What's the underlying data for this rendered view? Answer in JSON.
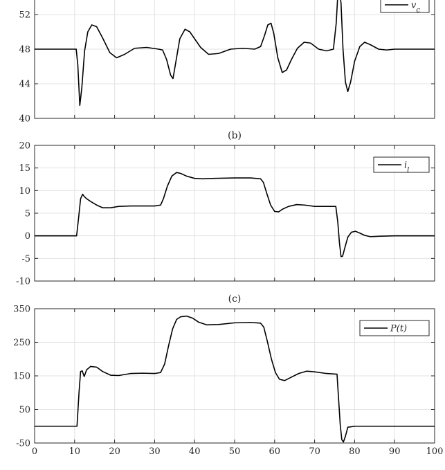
{
  "chart_data": [
    {
      "type": "line",
      "panel_label": "",
      "xlim": [
        0,
        100
      ],
      "ylim": [
        40,
        54
      ],
      "yticks": [
        40,
        44,
        48,
        52
      ],
      "yticklabels": [
        "40",
        "44",
        "48",
        "52"
      ],
      "grid": true,
      "legend_location": "top-right",
      "series": [
        {
          "name": "v_c",
          "color": "#000000",
          "x": [
            0,
            10.4,
            10.8,
            11.3,
            11.8,
            12.5,
            13.3,
            14.3,
            15.5,
            17,
            18.8,
            20.5,
            22.5,
            25,
            28,
            31,
            32,
            33,
            34,
            34.6,
            35.3,
            36.3,
            37.6,
            38.8,
            40,
            41.5,
            43.5,
            46,
            49,
            52,
            55,
            56.5,
            57.5,
            58.3,
            59.1,
            59.8,
            60.8,
            61.9,
            63,
            64.2,
            65.7,
            67.4,
            69,
            71,
            73,
            74.7,
            75.4,
            75.8,
            76.2,
            76.6,
            77.1,
            77.7,
            78.3,
            79,
            80,
            81.3,
            82.5,
            84,
            86,
            88,
            90,
            100
          ],
          "y": [
            48,
            48,
            46.2,
            41.5,
            43.5,
            47.8,
            50,
            50.8,
            50.6,
            49.3,
            47.6,
            47,
            47.4,
            48.1,
            48.2,
            48,
            47.9,
            46.8,
            45,
            44.6,
            46.5,
            49.2,
            50.3,
            50,
            49.2,
            48.2,
            47.4,
            47.5,
            48,
            48.1,
            48,
            48.3,
            49.6,
            50.8,
            51,
            49.8,
            47,
            45.3,
            45.6,
            46.8,
            48.1,
            48.8,
            48.7,
            48,
            47.8,
            48,
            51,
            54.3,
            55,
            53.3,
            48,
            44.2,
            43.1,
            44.2,
            46.6,
            48.3,
            48.8,
            48.5,
            48,
            47.9,
            48,
            48
          ]
        }
      ]
    },
    {
      "type": "line",
      "panel_label": "(b)",
      "xlim": [
        0,
        100
      ],
      "ylim": [
        -10,
        20
      ],
      "yticks": [
        -10,
        -5,
        0,
        5,
        10,
        15,
        20
      ],
      "yticklabels": [
        "-10",
        "-5",
        "0",
        "5",
        "10",
        "15",
        "20"
      ],
      "grid": true,
      "legend_location": "top-right",
      "series": [
        {
          "name": "i_l",
          "color": "#000000",
          "x": [
            0,
            10.5,
            11,
            11.5,
            12,
            12.4,
            13,
            14,
            15.5,
            17,
            19,
            21,
            24,
            27,
            30,
            31.5,
            32.2,
            33.2,
            34.3,
            35.5,
            36.5,
            38,
            40,
            42,
            45,
            50,
            54,
            56.5,
            57.2,
            58,
            59,
            60,
            61,
            62,
            63.5,
            65.5,
            67.5,
            70,
            73,
            75.3,
            75.8,
            76.2,
            76.6,
            77,
            77.6,
            78.3,
            79.2,
            80.2,
            81.3,
            82.5,
            84,
            86,
            90,
            100
          ],
          "y": [
            0,
            0,
            4,
            8.2,
            9.2,
            8.7,
            8.2,
            7.6,
            6.8,
            6.2,
            6.2,
            6.5,
            6.6,
            6.6,
            6.6,
            6.8,
            8.2,
            11,
            13.2,
            14,
            13.8,
            13.2,
            12.7,
            12.6,
            12.7,
            12.8,
            12.8,
            12.6,
            11.8,
            9.5,
            6.8,
            5.4,
            5.3,
            5.9,
            6.5,
            6.9,
            6.8,
            6.5,
            6.5,
            6.5,
            3,
            -1.5,
            -4.6,
            -4.5,
            -2.5,
            -0.3,
            0.8,
            1,
            0.6,
            0.1,
            -0.2,
            -0.1,
            0,
            0
          ]
        }
      ]
    },
    {
      "type": "line",
      "panel_label": "(c)",
      "xlim": [
        0,
        100
      ],
      "ylim": [
        -50,
        350
      ],
      "yticks": [
        -50,
        50,
        150,
        250,
        350
      ],
      "yticklabels": [
        "-50",
        "50",
        "150",
        "250",
        "350"
      ],
      "xticks": [
        0,
        10,
        20,
        30,
        40,
        50,
        60,
        70,
        80,
        90,
        100
      ],
      "xticklabels": [
        "0",
        "10",
        "20",
        "30",
        "40",
        "50",
        "60",
        "70",
        "80",
        "90",
        "100"
      ],
      "xlabel": "",
      "grid": true,
      "legend_location": "top-right",
      "series": [
        {
          "name": "P(t)",
          "color": "#000000",
          "x": [
            0,
            10.6,
            11.1,
            11.5,
            11.9,
            12.4,
            13,
            14,
            15.5,
            17,
            19,
            21,
            24,
            27,
            30,
            31.5,
            32.5,
            33.5,
            34.5,
            35.5,
            36.5,
            38,
            39.5,
            41,
            43,
            46,
            50,
            54,
            56.5,
            57.3,
            58.2,
            59.2,
            60.2,
            61.2,
            62.5,
            64,
            66,
            68,
            70,
            73,
            75.6,
            76,
            76.4,
            76.8,
            77.2,
            77.7,
            78.3,
            80,
            85,
            90,
            100
          ],
          "y": [
            0,
            0,
            100,
            163,
            165,
            148,
            168,
            178,
            176,
            163,
            152,
            151,
            157,
            158,
            157,
            160,
            185,
            240,
            290,
            318,
            326,
            328,
            322,
            310,
            302,
            303,
            308,
            309,
            307,
            295,
            252,
            200,
            160,
            140,
            136,
            145,
            157,
            164,
            162,
            157,
            155,
            80,
            5,
            -40,
            -47,
            -30,
            -3,
            0,
            0,
            0,
            0
          ]
        }
      ]
    }
  ]
}
